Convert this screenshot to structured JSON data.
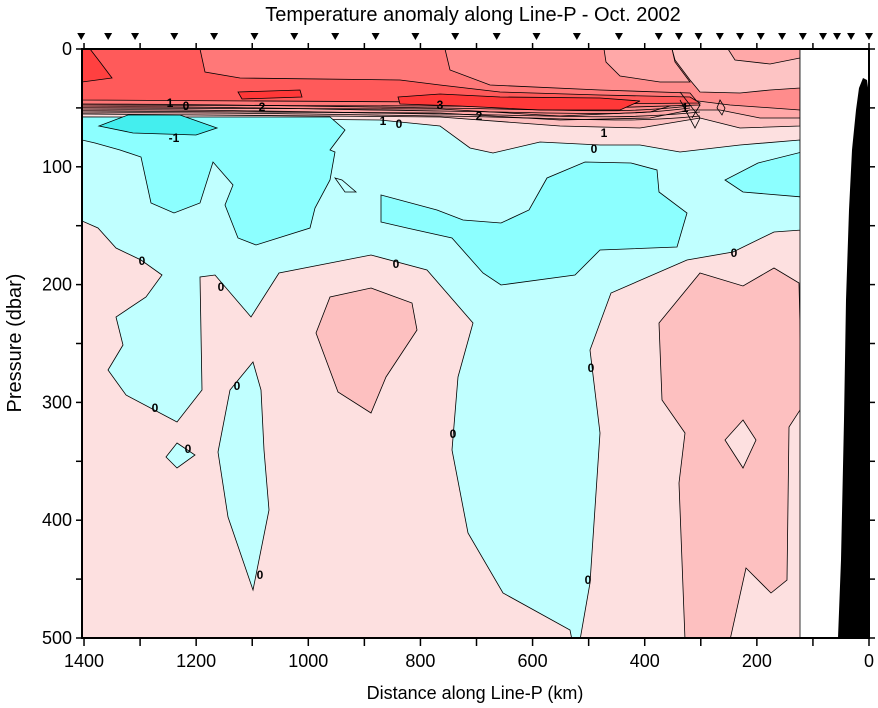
{
  "chart_data": {
    "type": "heatmap",
    "subtype": "filled-contour",
    "title": "Temperature anomaly along Line-P - Oct. 2002",
    "xlabel": "Distance along Line-P (km)",
    "ylabel": "Pressure (dbar)",
    "xlim": [
      1405,
      0
    ],
    "ylim": [
      0,
      500
    ],
    "x_ticks": [
      1400,
      1200,
      1000,
      800,
      600,
      400,
      200,
      0
    ],
    "y_ticks": [
      0,
      100,
      200,
      300,
      400,
      500
    ],
    "contour_levels": [
      -1.5,
      -1,
      -0.5,
      0,
      0.5,
      1,
      1.5,
      2,
      2.5,
      3
    ],
    "colors": {
      "lt_neg1": "#44eeee",
      "neg1_neg05": "#8cffff",
      "neg05_0": "#c0ffff",
      "0_05": "#fde0e0",
      "05_1": "#fdc0c0",
      "1_15": "#ffa8a8",
      "15_2": "#ff8c8c",
      "2_25": "#ff7676",
      "25_3": "#ff5a5a",
      "gt3": "#ff4040",
      "bathymetry": "#000000"
    },
    "stations_km": [
      1405,
      1357,
      1309,
      1239,
      1168,
      1096,
      1025,
      952,
      880,
      809,
      738,
      664,
      593,
      521,
      446,
      375,
      339,
      304,
      266,
      230,
      193,
      155,
      118,
      82,
      57,
      32,
      0
    ],
    "data_extent_km": [
      1405,
      123
    ],
    "contour_labels": [
      {
        "text": "1"
      },
      {
        "text": "0"
      },
      {
        "text": "-1"
      },
      {
        "text": "2"
      },
      {
        "text": "1"
      },
      {
        "text": "0"
      },
      {
        "text": "3"
      },
      {
        "text": "2"
      },
      {
        "text": "1"
      },
      {
        "text": "0"
      },
      {
        "text": "1"
      },
      {
        "text": "0"
      },
      {
        "text": "0"
      },
      {
        "text": "0"
      },
      {
        "text": "0"
      },
      {
        "text": "0"
      },
      {
        "text": "0"
      },
      {
        "text": "0"
      },
      {
        "text": "0"
      },
      {
        "text": "0"
      },
      {
        "text": "0"
      },
      {
        "text": "0"
      }
    ]
  }
}
